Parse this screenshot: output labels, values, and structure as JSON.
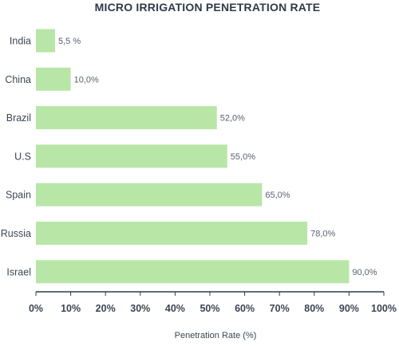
{
  "chart_data": {
    "type": "bar",
    "orientation": "horizontal",
    "title": "MICRO IRRIGATION PENETRATION RATE",
    "xlabel": "Penetration Rate (%)",
    "ylabel": "",
    "categories": [
      "India",
      "China",
      "Brazil",
      "U.S",
      "Spain",
      "Russia",
      "Israel"
    ],
    "values": [
      5.5,
      10.0,
      52.0,
      55.0,
      65.0,
      78.0,
      90.0
    ],
    "data_labels": [
      "5,5 %",
      "10,0%",
      "52,0%",
      "55,0%",
      "65,0%",
      "78,0%",
      "90,0%"
    ],
    "xlim": [
      0,
      100
    ],
    "xticks": [
      "0%",
      "10%",
      "20%",
      "30%",
      "40%",
      "50%",
      "60%",
      "70%",
      "80%",
      "90%",
      "100%"
    ],
    "grid": false,
    "legend": "none",
    "bar_color": "#b8e6a6"
  }
}
